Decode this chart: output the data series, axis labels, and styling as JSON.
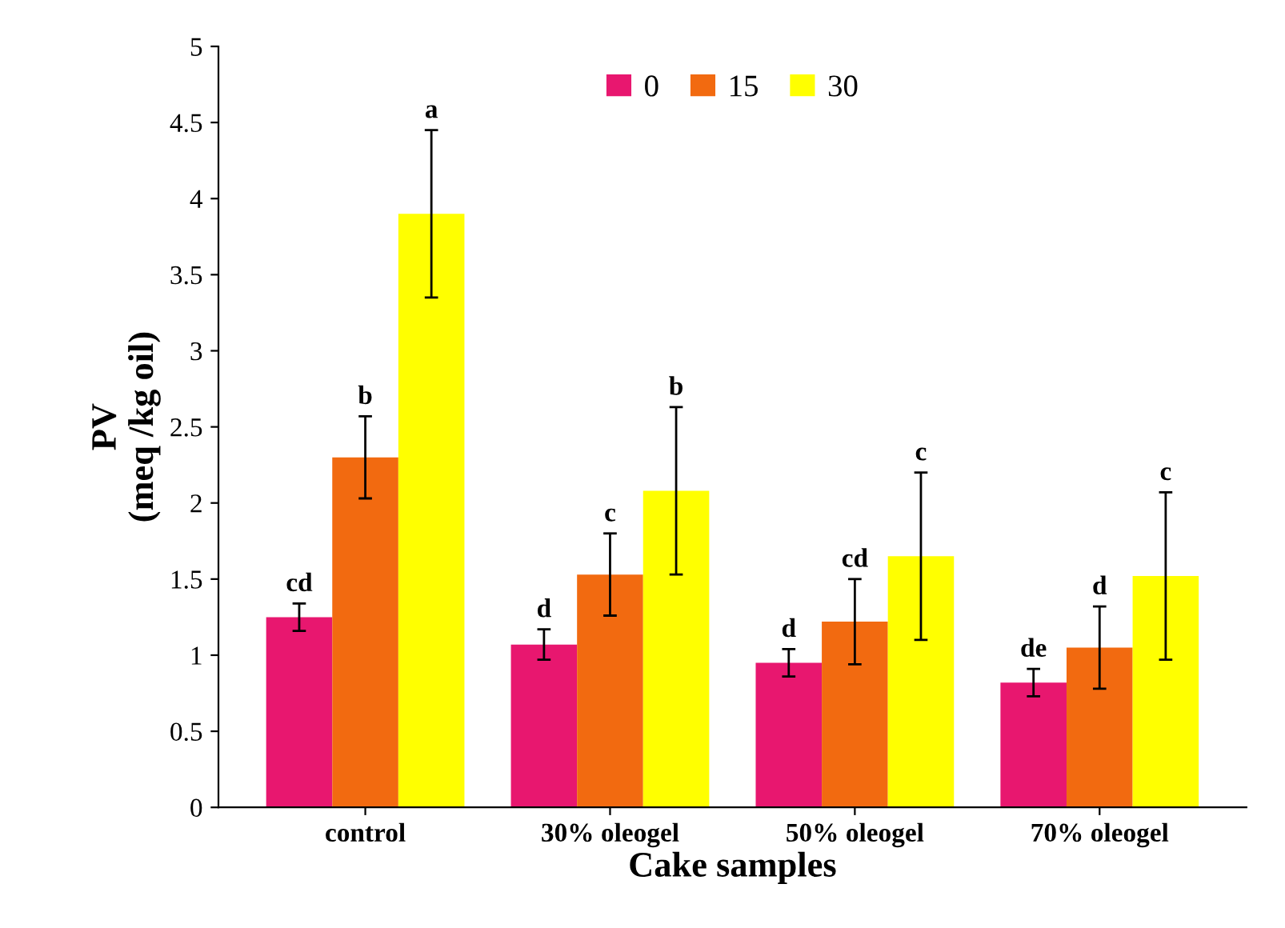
{
  "chart_data": {
    "type": "bar",
    "xlabel": "Cake samples",
    "ylabel": "PV\n(meq /kg oil)",
    "categories": [
      "control",
      "30% oleogel",
      "50% oleogel",
      "70% oleogel"
    ],
    "series": [
      {
        "name": "0",
        "color": "#e8176f",
        "values": [
          1.25,
          1.07,
          0.95,
          0.82
        ],
        "errors": [
          0.09,
          0.1,
          0.09,
          0.09
        ]
      },
      {
        "name": "15",
        "color": "#f26a10",
        "values": [
          2.3,
          1.53,
          1.22,
          1.05
        ],
        "errors": [
          0.27,
          0.27,
          0.28,
          0.27
        ]
      },
      {
        "name": "30",
        "color": "#ffff00",
        "values": [
          3.9,
          2.08,
          1.65,
          1.52
        ],
        "errors": [
          0.55,
          0.55,
          0.55,
          0.55
        ]
      }
    ],
    "annotations": [
      "cd",
      "b",
      "a",
      "d",
      "c",
      "b",
      "d",
      "cd",
      "c",
      "de",
      "d",
      "c"
    ],
    "ylim": [
      0,
      5
    ],
    "yticks": [
      0,
      0.5,
      1,
      1.5,
      2,
      2.5,
      3,
      3.5,
      4,
      4.5,
      5
    ],
    "legend": "top",
    "grid": false
  }
}
